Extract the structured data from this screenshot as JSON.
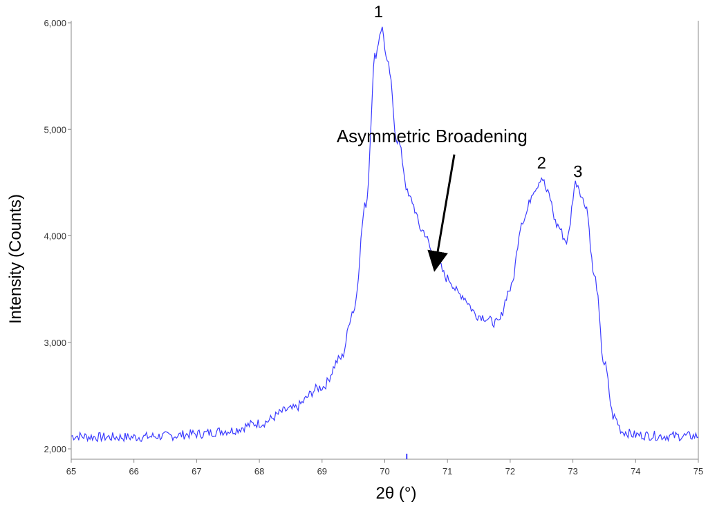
{
  "chart_data": {
    "type": "line",
    "title": "",
    "xlabel": "2θ (°)",
    "ylabel": "Intensity (Counts)",
    "xlim": [
      65,
      75
    ],
    "ylim": [
      1900,
      6000
    ],
    "x_ticks": [
      65,
      66,
      67,
      68,
      69,
      70,
      71,
      72,
      73,
      74,
      75
    ],
    "x_tick_labels": [
      "65",
      "66",
      "67",
      "68",
      "69",
      "70",
      "71",
      "72",
      "73",
      "74",
      "75"
    ],
    "y_ticks": [
      2000,
      3000,
      4000,
      5000,
      6000
    ],
    "y_tick_labels": [
      "2,000",
      "3,000",
      "4,000",
      "5,000",
      "6,000"
    ],
    "grid": false,
    "legend": "none",
    "series": [
      {
        "color": "#3b3bff",
        "x": [
          65.0,
          65.5,
          66.0,
          66.5,
          67.0,
          67.5,
          68.0,
          68.5,
          69.0,
          69.3,
          69.5,
          69.7,
          69.85,
          69.95,
          70.05,
          70.2,
          70.4,
          70.6,
          70.8,
          71.0,
          71.2,
          71.5,
          71.8,
          72.0,
          72.2,
          72.4,
          72.5,
          72.6,
          72.75,
          72.9,
          73.05,
          73.2,
          73.35,
          73.5,
          73.65,
          73.8,
          74.0,
          74.5,
          75.0
        ],
        "y": [
          2120,
          2110,
          2110,
          2120,
          2140,
          2170,
          2240,
          2370,
          2580,
          2850,
          3300,
          4300,
          5700,
          5950,
          5600,
          4900,
          4350,
          4050,
          3800,
          3600,
          3450,
          3250,
          3180,
          3500,
          4150,
          4450,
          4550,
          4400,
          4100,
          3950,
          4500,
          4300,
          3600,
          2800,
          2300,
          2160,
          2130,
          2120,
          2120
        ]
      }
    ],
    "peak_labels": [
      {
        "text": "1",
        "x": 69.9,
        "y": 6000
      },
      {
        "text": "2",
        "x": 72.5,
        "y": 4580
      },
      {
        "text": "3",
        "x": 73.08,
        "y": 4500
      }
    ],
    "annotation": {
      "text": "Asymmetric Broadening",
      "x": 70.8,
      "y": 3700,
      "text_x": 70.5,
      "text_y": 4880
    },
    "x_marker": 70.35
  }
}
